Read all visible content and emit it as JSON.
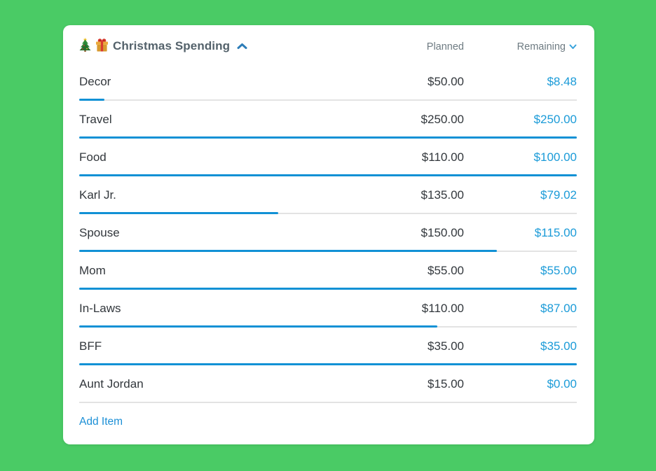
{
  "header": {
    "title": "Christmas Spending",
    "icons": [
      "christmas-tree",
      "gift"
    ],
    "planned_label": "Planned",
    "remaining_label": "Remaining"
  },
  "items": [
    {
      "name": "Decor",
      "planned": "$50.00",
      "remaining": "$8.48",
      "progress_pct": 5
    },
    {
      "name": "Travel",
      "planned": "$250.00",
      "remaining": "$250.00",
      "progress_pct": 100
    },
    {
      "name": "Food",
      "planned": "$110.00",
      "remaining": "$100.00",
      "progress_pct": 100
    },
    {
      "name": "Karl Jr.",
      "planned": "$135.00",
      "remaining": "$79.02",
      "progress_pct": 40
    },
    {
      "name": "Spouse",
      "planned": "$150.00",
      "remaining": "$115.00",
      "progress_pct": 84
    },
    {
      "name": "Mom",
      "planned": "$55.00",
      "remaining": "$55.00",
      "progress_pct": 100
    },
    {
      "name": "In-Laws",
      "planned": "$110.00",
      "remaining": "$87.00",
      "progress_pct": 72
    },
    {
      "name": "BFF",
      "planned": "$35.00",
      "remaining": "$35.00",
      "progress_pct": 100
    },
    {
      "name": "Aunt Jordan",
      "planned": "$15.00",
      "remaining": "$0.00",
      "progress_pct": 0
    }
  ],
  "footer": {
    "add_item_label": "Add Item"
  },
  "colors": {
    "background_green": "#4ACB65",
    "card_white": "#FFFFFF",
    "title_slate": "#54626B",
    "column_header_gray": "#6E7B82",
    "text_dark": "#32373C",
    "remaining_blue": "#1B9BD8",
    "progress_blue": "#1191D5",
    "progress_track_gray": "#E3E3E3",
    "collapse_chevron_blue": "#2D7DB8",
    "sort_chevron_blue": "#38A3DC",
    "add_item_blue": "#1B8FD6"
  }
}
